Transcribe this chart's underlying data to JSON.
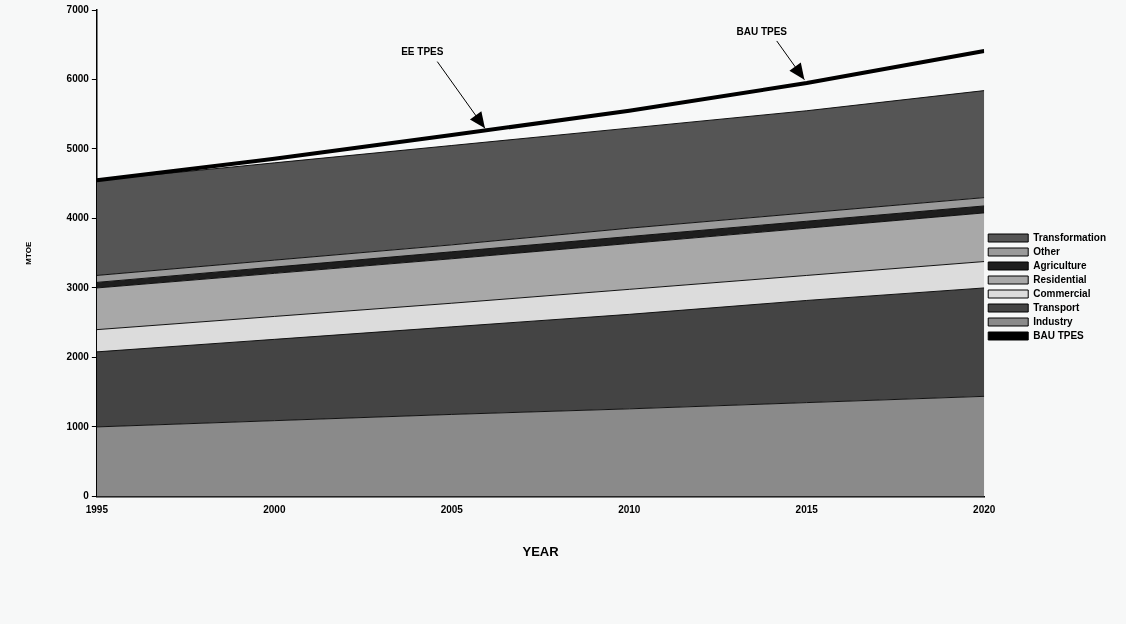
{
  "chart_data": {
    "type": "area",
    "stacked": true,
    "xlabel": "YEAR",
    "ylabel": "MTOE",
    "x": [
      1995,
      2000,
      2005,
      2010,
      2015,
      2020
    ],
    "xlim": [
      1995,
      2020
    ],
    "xticks": [
      1995,
      2000,
      2005,
      2010,
      2015,
      2020
    ],
    "ylim": [
      0,
      7000
    ],
    "yticks": [
      0,
      1000,
      2000,
      3000,
      4000,
      5000,
      6000,
      7000
    ],
    "grid": false,
    "legend": "right",
    "marker": "none",
    "series": [
      {
        "name": "Industry",
        "color": "#8a8a8a",
        "values": [
          1000,
          1090,
          1180,
          1260,
          1350,
          1440
        ]
      },
      {
        "name": "Transport",
        "color": "#444444",
        "values": [
          1080,
          1170,
          1260,
          1360,
          1470,
          1560
        ]
      },
      {
        "name": "Commercial",
        "color": "#dcdcdc",
        "values": [
          320,
          330,
          340,
          360,
          360,
          380
        ]
      },
      {
        "name": "Residential",
        "color": "#a8a8a8",
        "values": [
          600,
          620,
          640,
          660,
          680,
          700
        ]
      },
      {
        "name": "Agriculture",
        "color": "#1e1e1e",
        "values": [
          80,
          90,
          100,
          100,
          100,
          100
        ]
      },
      {
        "name": "Other",
        "color": "#9a9a9a",
        "values": [
          100,
          100,
          100,
          120,
          120,
          120
        ]
      },
      {
        "name": "Transformation",
        "color": "#555555",
        "values": [
          1370,
          1400,
          1430,
          1440,
          1470,
          1540
        ]
      },
      {
        "name": "BAU TPES",
        "type": "line",
        "color": "#000000",
        "line_style": "solid",
        "values": [
          4550,
          4860,
          5200,
          5550,
          5950,
          6410
        ]
      }
    ],
    "annotations": [
      {
        "text": "EE TPES",
        "x": 2006,
        "y": 5250
      },
      {
        "text": "BAU TPES",
        "x": 2015,
        "y": 5950
      }
    ]
  }
}
